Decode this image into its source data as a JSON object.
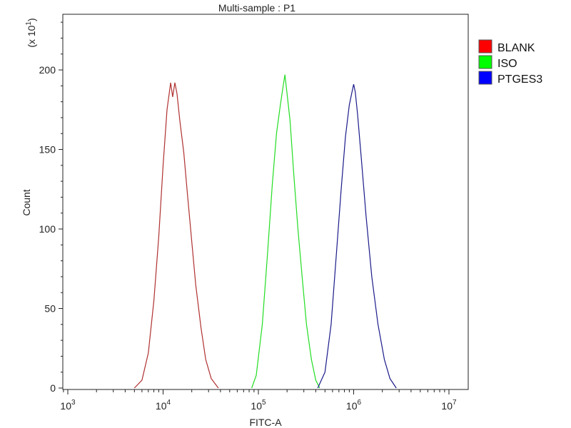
{
  "chart_data": {
    "type": "line",
    "title": "Multi-sample : P1",
    "xlabel": "FITC-A",
    "ylabel": "Count",
    "y_multiplier": "(x 10",
    "y_multiplier_exp": "1",
    "x_scale": "log",
    "xlim": [
      1000,
      10000000
    ],
    "ylim": [
      0,
      235
    ],
    "x_ticks": [
      {
        "base": "10",
        "exp": "3",
        "value": 1000
      },
      {
        "base": "10",
        "exp": "4",
        "value": 10000
      },
      {
        "base": "10",
        "exp": "5",
        "value": 100000
      },
      {
        "base": "10",
        "exp": "6",
        "value": 1000000
      },
      {
        "base": "10",
        "exp": "7",
        "value": 10000000
      }
    ],
    "y_ticks": [
      {
        "label": "0",
        "value": 0
      },
      {
        "label": "50",
        "value": 50
      },
      {
        "label": "100",
        "value": 100
      },
      {
        "label": "150",
        "value": 150
      },
      {
        "label": "200",
        "value": 200
      }
    ],
    "legend_position": "top-right",
    "grid": false,
    "series": [
      {
        "name": "BLANK",
        "color": "#b03030",
        "legend_color": "#ff0000",
        "x": [
          5000,
          6000,
          7000,
          8000,
          9000,
          10000,
          11000,
          12000,
          12600,
          13300,
          14000,
          15000,
          16500,
          18000,
          20000,
          22000,
          25000,
          28000,
          32000,
          38000
        ],
        "y": [
          0,
          5,
          22,
          55,
          95,
          140,
          175,
          192,
          183,
          192,
          185,
          168,
          148,
          122,
          92,
          65,
          38,
          18,
          6,
          0
        ]
      },
      {
        "name": "ISO",
        "color": "#22dd22",
        "legend_color": "#00ff00",
        "x": [
          85000,
          95000,
          110000,
          125000,
          140000,
          155000,
          170000,
          180000,
          190000,
          200000,
          215000,
          235000,
          260000,
          290000,
          320000,
          360000,
          400000,
          440000
        ],
        "y": [
          0,
          8,
          40,
          85,
          128,
          160,
          178,
          188,
          197,
          185,
          168,
          135,
          100,
          68,
          40,
          18,
          5,
          0
        ]
      },
      {
        "name": "PTGES3",
        "color": "#1a1a8a",
        "legend_color": "#0000ff",
        "x": [
          420000,
          500000,
          580000,
          660000,
          740000,
          820000,
          900000,
          960000,
          1000000,
          1040000,
          1100000,
          1200000,
          1350000,
          1550000,
          1800000,
          2100000,
          2400000,
          2800000
        ],
        "y": [
          0,
          10,
          40,
          85,
          125,
          158,
          178,
          186,
          191,
          186,
          172,
          145,
          108,
          70,
          40,
          18,
          6,
          0
        ]
      }
    ]
  }
}
